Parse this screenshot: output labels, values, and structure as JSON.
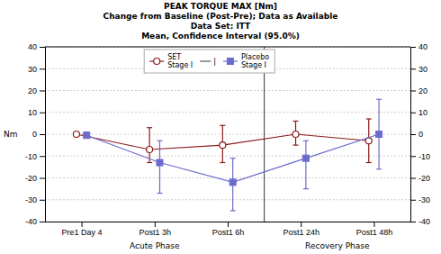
{
  "chart_data": {
    "type": "line",
    "title": "PEAK TORQUE MAX [Nm]\nChange from Baseline (Post-Pre); Data as Available\nData Set: ITT\nMean, Confidence Interval (95.0%)",
    "categories": [
      "Pre1 Day 4",
      "Post1 3h",
      "Post1 6h",
      "Post1 24h",
      "Post1 48h"
    ],
    "ylabel": "Nm",
    "ylim": [
      -40,
      40
    ],
    "yticks": [
      -40,
      -30,
      -20,
      -10,
      0,
      10,
      20,
      30,
      40
    ],
    "y2lim": [
      -40,
      40
    ],
    "y2ticks": [
      -40,
      -30,
      -20,
      -10,
      0,
      10,
      20,
      30,
      40
    ],
    "grid": true,
    "legend": "upper center",
    "annotations": [
      "Acute Phase",
      "Recovery Phase",
      "|"
    ],
    "series": [
      {
        "name": "SET\nStage I",
        "color": "#8B1A1A",
        "marker": "circle",
        "values": [
          0,
          -7,
          -5,
          0,
          -3
        ],
        "ci_low": [
          0,
          -13,
          -13,
          -5,
          -13
        ],
        "ci_high": [
          0,
          3,
          4,
          6,
          7
        ]
      },
      {
        "name": "Placebo\nStage I",
        "color": "#6B6BCD",
        "marker": "square",
        "values": [
          -0.5,
          -13,
          -22,
          -11,
          0
        ],
        "ci_low": [
          -1,
          -27,
          -35,
          -25,
          -16
        ],
        "ci_high": [
          1,
          -3,
          -11,
          -3,
          16
        ]
      }
    ]
  }
}
